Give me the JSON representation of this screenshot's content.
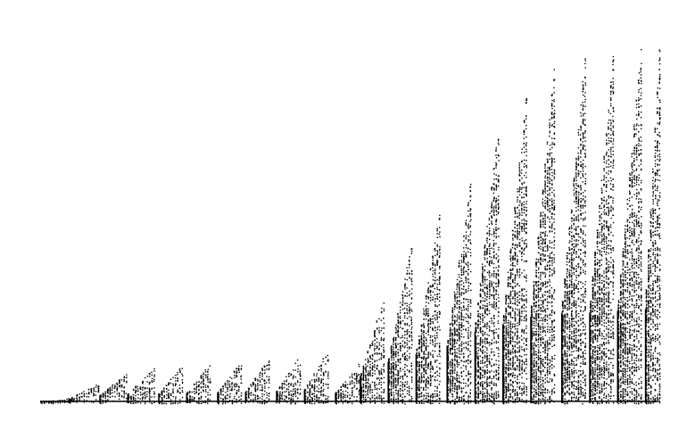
{
  "chart_data": {
    "type": "scatter",
    "title": "",
    "xlabel": "",
    "ylabel": "",
    "grid": false,
    "legend": "none",
    "axes_visible": false,
    "marker_color": "#000000",
    "background_color": "#ffffff",
    "xlim": [
      0,
      100
    ],
    "ylim": [
      0,
      100
    ],
    "baseline_y": 0.5,
    "clusters": [
      {
        "x_start": 0.0,
        "x_end": 5.5,
        "y_top": 1.5
      },
      {
        "x_start": 4.5,
        "x_end": 9.5,
        "y_top": 5.5
      },
      {
        "x_start": 9.5,
        "x_end": 14.0,
        "y_top": 8.5
      },
      {
        "x_start": 14.0,
        "x_end": 18.5,
        "y_top": 10.0
      },
      {
        "x_start": 19.0,
        "x_end": 23.0,
        "y_top": 10.5
      },
      {
        "x_start": 23.5,
        "x_end": 27.5,
        "y_top": 11.0
      },
      {
        "x_start": 28.5,
        "x_end": 32.5,
        "y_top": 11.5
      },
      {
        "x_start": 33.0,
        "x_end": 37.0,
        "y_top": 12.5
      },
      {
        "x_start": 38.0,
        "x_end": 42.0,
        "y_top": 13.0
      },
      {
        "x_start": 42.5,
        "x_end": 46.5,
        "y_top": 14.5
      },
      {
        "x_start": 47.5,
        "x_end": 51.5,
        "y_top": 11.0
      },
      {
        "x_start": 51.5,
        "x_end": 55.5,
        "y_top": 29.0
      },
      {
        "x_start": 56.0,
        "x_end": 60.0,
        "y_top": 44.0
      },
      {
        "x_start": 60.5,
        "x_end": 64.5,
        "y_top": 52.0
      },
      {
        "x_start": 65.5,
        "x_end": 69.5,
        "y_top": 61.0
      },
      {
        "x_start": 70.0,
        "x_end": 74.0,
        "y_top": 76.0
      },
      {
        "x_start": 74.5,
        "x_end": 78.5,
        "y_top": 84.0
      },
      {
        "x_start": 79.0,
        "x_end": 83.0,
        "y_top": 92.0
      },
      {
        "x_start": 84.0,
        "x_end": 88.0,
        "y_top": 96.0
      },
      {
        "x_start": 88.5,
        "x_end": 92.5,
        "y_top": 96.0
      },
      {
        "x_start": 93.0,
        "x_end": 97.0,
        "y_top": 98.0
      },
      {
        "x_start": 97.5,
        "x_end": 100.0,
        "y_top": 100.0
      }
    ]
  }
}
